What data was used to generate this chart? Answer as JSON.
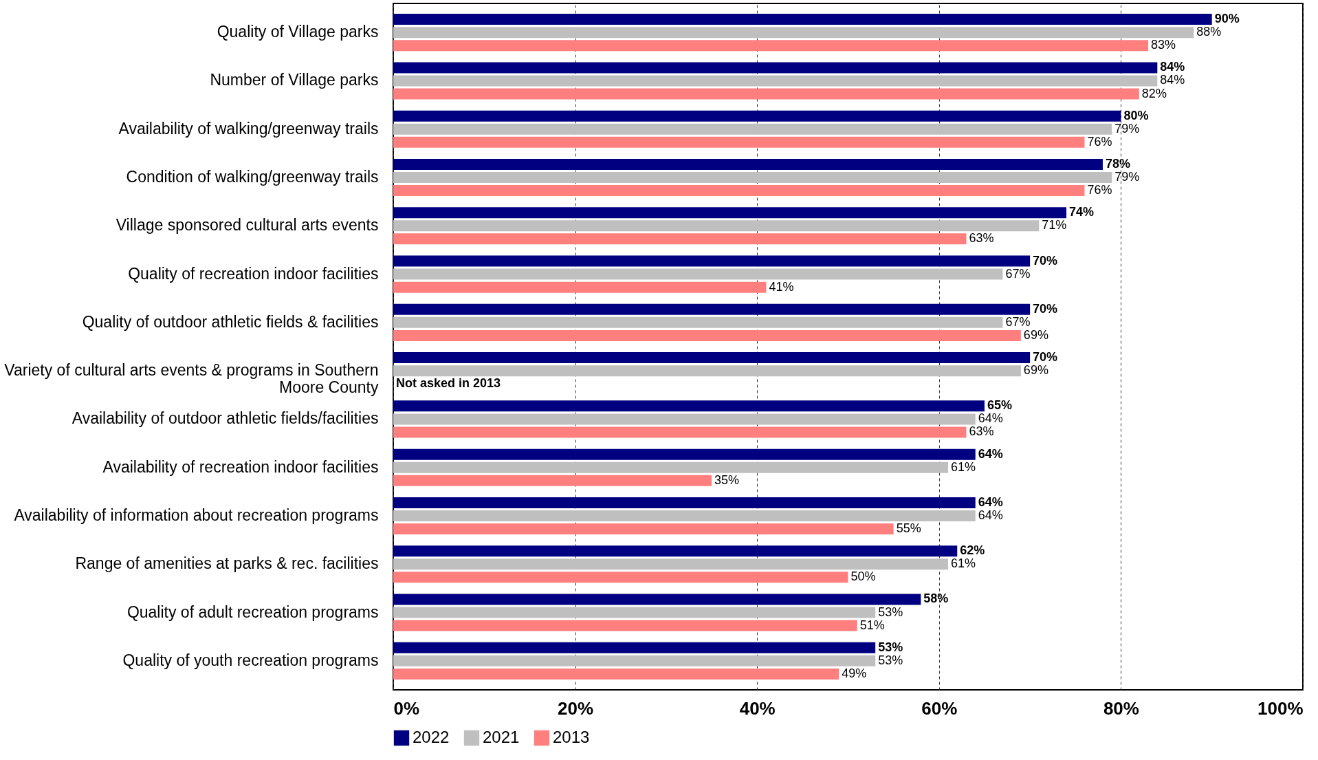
{
  "chart_data": {
    "type": "bar",
    "orientation": "horizontal",
    "categories": [
      "Quality of Village parks",
      "Number of Village parks",
      "Availability of walking/greenway trails",
      "Condition of walking/greenway trails",
      "Village sponsored cultural arts events",
      "Quality of recreation indoor facilities",
      "Quality of outdoor athletic fields & facilities",
      "Variety of cultural arts events & programs in Southern Moore County",
      "Availability of outdoor athletic fields/facilities",
      "Availability of recreation indoor facilities",
      "Availability of information about recreation programs",
      "Range of amenities at parks & rec. facilities",
      "Quality of adult recreation programs",
      "Quality of youth recreation programs"
    ],
    "series": [
      {
        "name": "2022",
        "color": "#000080",
        "values": [
          90,
          84,
          80,
          78,
          74,
          70,
          70,
          70,
          65,
          64,
          64,
          62,
          58,
          53
        ],
        "value_labels": [
          "90%",
          "84%",
          "80%",
          "78%",
          "74%",
          "70%",
          "70%",
          "70%",
          "65%",
          "64%",
          "64%",
          "62%",
          "58%",
          "53%"
        ]
      },
      {
        "name": "2021",
        "color": "#bfbfbf",
        "values": [
          88,
          84,
          79,
          79,
          71,
          67,
          67,
          69,
          64,
          61,
          64,
          61,
          53,
          53
        ],
        "value_labels": [
          "88%",
          "84%",
          "79%",
          "79%",
          "71%",
          "67%",
          "67%",
          "69%",
          "64%",
          "61%",
          "64%",
          "61%",
          "53%",
          "53%"
        ]
      },
      {
        "name": "2013",
        "color": "#ff7f7f",
        "values": [
          83,
          82,
          76,
          76,
          63,
          41,
          69,
          null,
          63,
          35,
          55,
          50,
          51,
          49
        ],
        "value_labels": [
          "83%",
          "82%",
          "76%",
          "76%",
          "63%",
          "41%",
          "69%",
          null,
          "63%",
          "35%",
          "55%",
          "50%",
          "51%",
          "49%"
        ]
      }
    ],
    "xlim": [
      0,
      100
    ],
    "xticks": [
      {
        "value": 0,
        "label": "0%"
      },
      {
        "value": 20,
        "label": "20%"
      },
      {
        "value": 40,
        "label": "40%"
      },
      {
        "value": 60,
        "label": "60%"
      },
      {
        "value": 80,
        "label": "80%"
      },
      {
        "value": 100,
        "label": "100%"
      }
    ],
    "grid": "x",
    "legend": "bottom",
    "annotations": [
      {
        "text": "Not asked in 2013",
        "x": 0,
        "y": "Variety of cultural arts events & programs in Southern Moore County"
      }
    ]
  }
}
